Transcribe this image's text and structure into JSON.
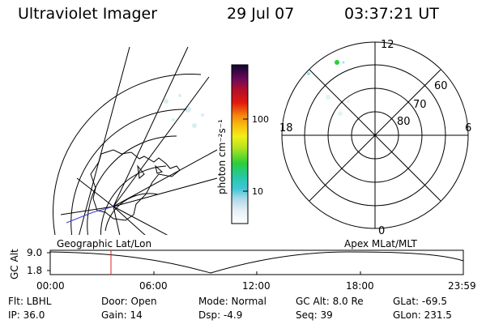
{
  "header": {
    "title": "Ultraviolet Imager",
    "date": "29 Jul 07",
    "time": "03:37:21 UT"
  },
  "colorbar": {
    "unit_label": "photon cm⁻²s⁻¹",
    "ticks": [
      "100",
      "10"
    ]
  },
  "polar": {
    "mlt_labels": {
      "top": "12",
      "left": "18",
      "right": "6",
      "bottom": "0"
    },
    "lat_labels": [
      "60",
      "70",
      "80"
    ]
  },
  "map_labels": {
    "geo": "Geographic Lat/Lon",
    "apex": "Apex  MLat/MLT"
  },
  "timeline": {
    "ylabel": "GC Alt",
    "yticks": [
      "9.0",
      "1.8"
    ],
    "xticks": [
      "00:00",
      "06:00",
      "12:00",
      "18:00",
      "23:59"
    ]
  },
  "info": {
    "flt": "Flt: LBHL",
    "ip": "IP: 36.0",
    "door": "Door: Open",
    "gain": "Gain: 14",
    "mode": "Mode: Normal",
    "dsp": "Dsp:    -4.9",
    "gcalt": "GC Alt: 8.0 Re",
    "seq": "Seq: 39",
    "glat": "GLat: -69.5",
    "glon": "GLon: 231.5"
  }
}
